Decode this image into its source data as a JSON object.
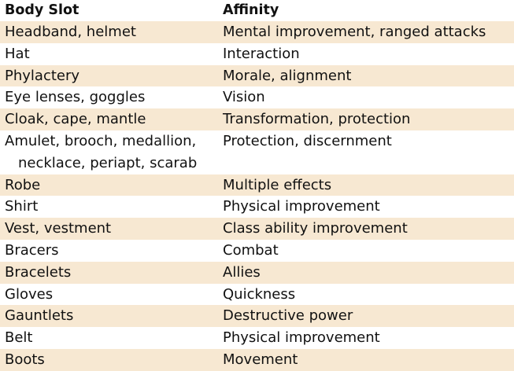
{
  "table": {
    "headers": [
      "Body Slot",
      "Affinity"
    ],
    "rows": [
      {
        "slot": "Headband, helmet",
        "affinity": "Mental improvement, ranged attacks"
      },
      {
        "slot": "Hat",
        "affinity": "Interaction"
      },
      {
        "slot": "Phylactery",
        "affinity": "Morale, alignment"
      },
      {
        "slot": "Eye lenses, goggles",
        "affinity": "Vision"
      },
      {
        "slot": "Cloak, cape, mantle",
        "affinity": "Transformation, protection"
      },
      {
        "slot": "Amulet, brooch, medallion,",
        "slot_cont": "necklace, periapt, scarab",
        "affinity": "Protection, discernment"
      },
      {
        "slot": "Robe",
        "affinity": "Multiple effects"
      },
      {
        "slot": "Shirt",
        "affinity": "Physical improvement"
      },
      {
        "slot": "Vest, vestment",
        "affinity": "Class ability improvement"
      },
      {
        "slot": "Bracers",
        "affinity": "Combat"
      },
      {
        "slot": "Bracelets",
        "affinity": "Allies"
      },
      {
        "slot": "Gloves",
        "affinity": "Quickness"
      },
      {
        "slot": "Gauntlets",
        "affinity": "Destructive power"
      },
      {
        "slot": "Belt",
        "affinity": "Physical improvement"
      },
      {
        "slot": "Boots",
        "affinity": "Movement"
      }
    ]
  },
  "colors": {
    "shaded_row": "#f7e8d2",
    "text": "#111111"
  }
}
